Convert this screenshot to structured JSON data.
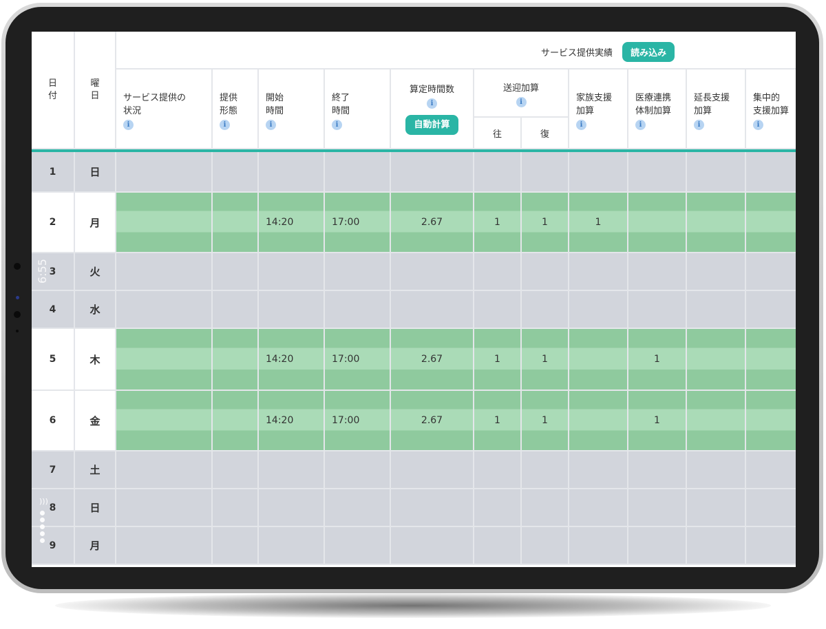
{
  "header": {
    "record_label": "サービス提供実績",
    "load_button": "読み込み",
    "auto_calc_button": "自動計算",
    "info_glyph": "i",
    "col_day": "日\n付",
    "col_weekday": "曜\n日",
    "col_status": "サービス提供の\n状況",
    "col_form": "提供\n形態",
    "col_start": "開始\n時間",
    "col_end": "終了\n時間",
    "col_hours": "算定時間数",
    "col_transport": "送迎加算",
    "col_transport_out": "往",
    "col_transport_back": "復",
    "col_family": "家族支援\n加算",
    "col_medical": "医療連携\n体制加算",
    "col_extension": "延長支援\n加算",
    "col_intensive": "集中的\n支援加算"
  },
  "rows": [
    {
      "day": "1",
      "weekday": "日",
      "kind": "gray",
      "wk_class": "sun",
      "start": "",
      "end": "",
      "hours": "",
      "out": "",
      "back": "",
      "family": "",
      "medical": ""
    },
    {
      "day": "2",
      "weekday": "月",
      "kind": "green",
      "wk_class": "",
      "start": "14:20",
      "end": "17:00",
      "hours": "2.67",
      "out": "1",
      "back": "1",
      "family": "1",
      "medical": ""
    },
    {
      "day": "3",
      "weekday": "火",
      "kind": "gray",
      "wk_class": "",
      "start": "",
      "end": "",
      "hours": "",
      "out": "",
      "back": "",
      "family": "",
      "medical": ""
    },
    {
      "day": "4",
      "weekday": "水",
      "kind": "gray",
      "wk_class": "",
      "start": "",
      "end": "",
      "hours": "",
      "out": "",
      "back": "",
      "family": "",
      "medical": ""
    },
    {
      "day": "5",
      "weekday": "木",
      "kind": "green",
      "wk_class": "",
      "start": "14:20",
      "end": "17:00",
      "hours": "2.67",
      "out": "1",
      "back": "1",
      "family": "",
      "medical": "1"
    },
    {
      "day": "6",
      "weekday": "金",
      "kind": "green",
      "wk_class": "",
      "start": "14:20",
      "end": "17:00",
      "hours": "2.67",
      "out": "1",
      "back": "1",
      "family": "",
      "medical": "1"
    },
    {
      "day": "7",
      "weekday": "土",
      "kind": "gray",
      "wk_class": "sat",
      "start": "",
      "end": "",
      "hours": "",
      "out": "",
      "back": "",
      "family": "",
      "medical": ""
    },
    {
      "day": "8",
      "weekday": "日",
      "kind": "gray",
      "wk_class": "sun",
      "start": "",
      "end": "",
      "hours": "",
      "out": "",
      "back": "",
      "family": "",
      "medical": ""
    },
    {
      "day": "9",
      "weekday": "月",
      "kind": "gray",
      "wk_class": "",
      "start": "",
      "end": "",
      "hours": "",
      "out": "",
      "back": "",
      "family": "",
      "medical": ""
    }
  ],
  "device": {
    "status_time": "6:55"
  },
  "colors": {
    "accent": "#2ab5a5",
    "green_dark": "#8fca9e",
    "green_light": "#aadbb7",
    "gray_row": "#d2d5dc",
    "sunday": "#d23a3a",
    "saturday": "#3b85d6"
  }
}
